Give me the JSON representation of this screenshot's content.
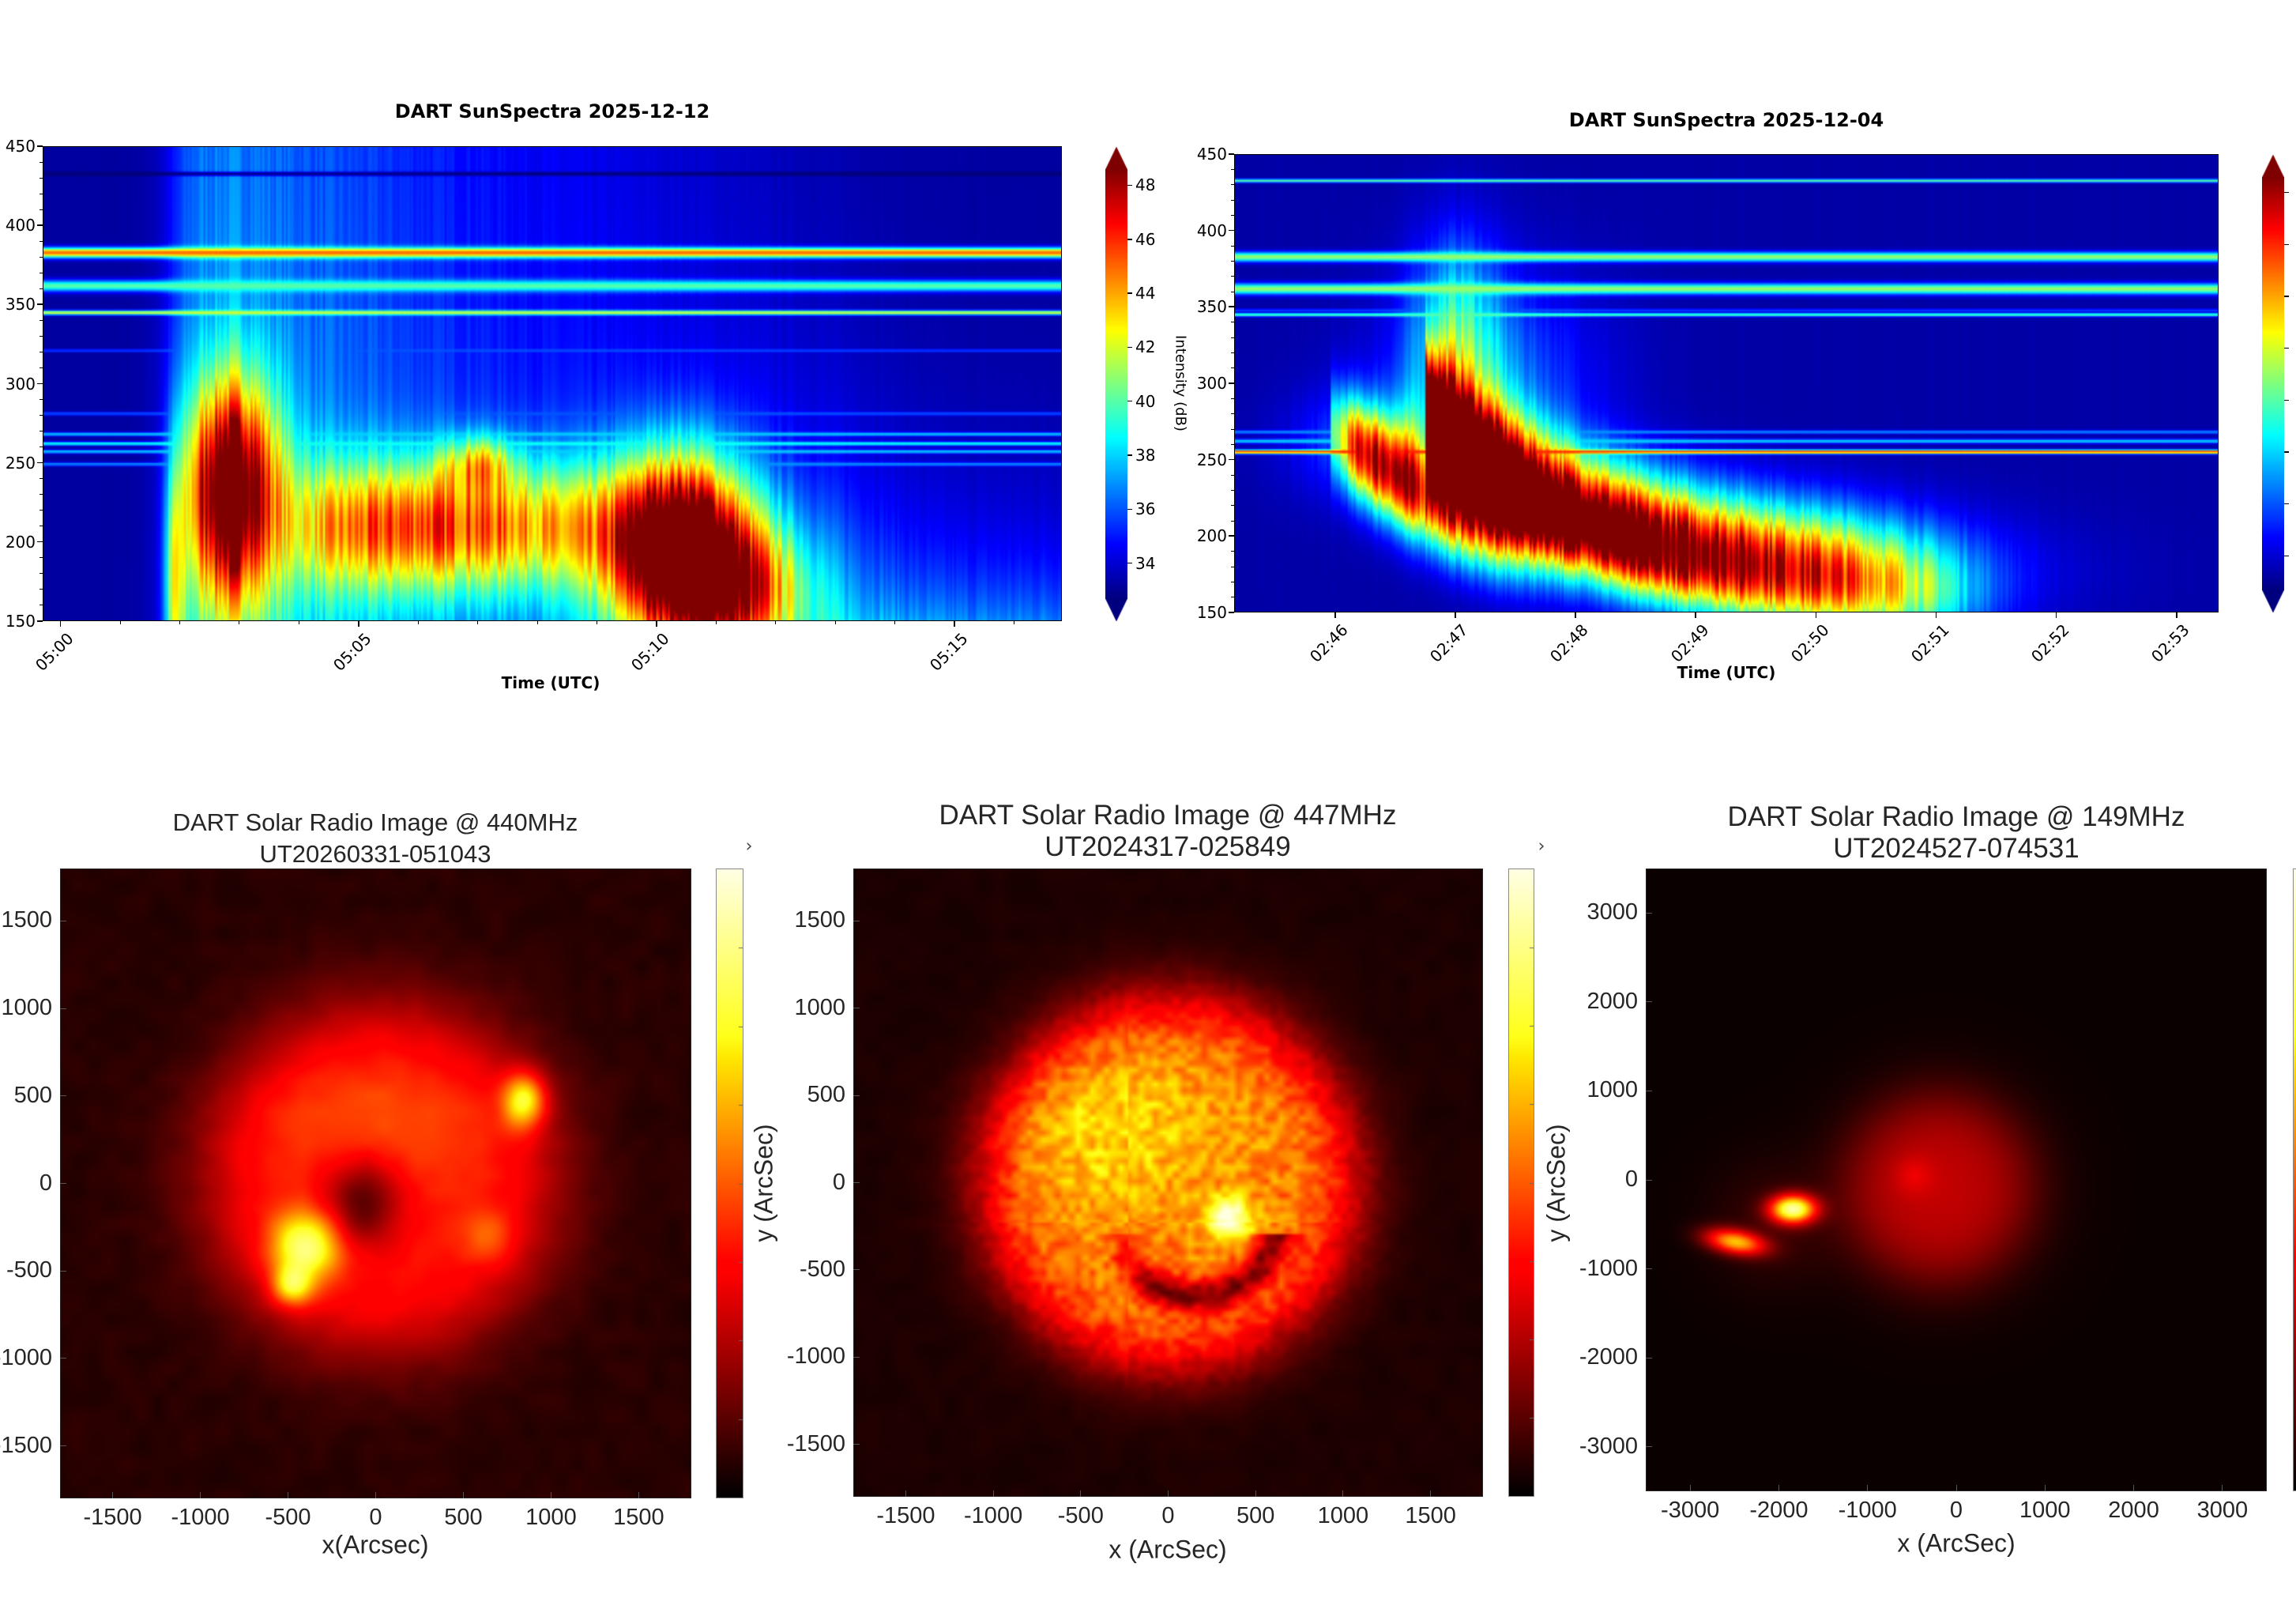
{
  "chart_data": [
    {
      "type": "heatmap",
      "id": "spec1",
      "title": "DART SunSpectra 2025-12-12",
      "xlabel": "Time (UTC)",
      "ylabel": "",
      "colormap": "jet",
      "ylim": [
        150,
        450
      ],
      "yticks": [
        150,
        200,
        250,
        300,
        350,
        400,
        450
      ],
      "xlim_minutes": [
        -0.3,
        16.8
      ],
      "x_minor_step_minutes": 1,
      "xticks": [
        {
          "minutes": 0,
          "label": "05:00"
        },
        {
          "minutes": 5,
          "label": "05:05"
        },
        {
          "minutes": 10,
          "label": "05:10"
        },
        {
          "minutes": 15,
          "label": "05:15"
        }
      ],
      "colorbar": {
        "label": "Intensity (dB)",
        "range": [
          32.7,
          48.6
        ],
        "ticks": [
          34,
          36,
          38,
          40,
          42,
          44,
          46,
          48
        ],
        "extend": "both"
      }
    },
    {
      "type": "heatmap",
      "id": "spec2",
      "title": "DART SunSpectra 2025-12-04",
      "xlabel": "Time (UTC)",
      "ylabel": "",
      "colormap": "jet",
      "ylim": [
        150,
        450
      ],
      "yticks": [
        150,
        200,
        250,
        300,
        350,
        400,
        450
      ],
      "xlim_minutes": [
        0.16,
        8.35
      ],
      "x_minor_step_minutes": 1,
      "xticks": [
        {
          "minutes": 1,
          "label": "02:46"
        },
        {
          "minutes": 2,
          "label": "02:47"
        },
        {
          "minutes": 3,
          "label": "02:48"
        },
        {
          "minutes": 4,
          "label": "02:49"
        },
        {
          "minutes": 5,
          "label": "02:50"
        },
        {
          "minutes": 6,
          "label": "02:51"
        },
        {
          "minutes": 7,
          "label": "02:52"
        },
        {
          "minutes": 8,
          "label": "02:53"
        }
      ],
      "colorbar": {
        "label": "",
        "range": [
          32.7,
          48.6
        ],
        "ticks": [],
        "extend": "both"
      }
    },
    {
      "type": "heatmap",
      "id": "img1",
      "title_lines": [
        "DART Solar Radio Image @ 440MHz",
        "UT20260331-051043"
      ],
      "xlabel": "x(Arcsec)",
      "ylabel": "",
      "colormap": "hot",
      "xlim": [
        -1800,
        1800
      ],
      "ylim": [
        -1800,
        1800
      ],
      "xticks": [
        -1500,
        -1000,
        -500,
        0,
        500,
        1000,
        1500
      ],
      "yticks": [
        -1500,
        -1000,
        -500,
        0,
        500,
        1000,
        1500
      ],
      "corner_mark": "›"
    },
    {
      "type": "heatmap",
      "id": "img2",
      "title_lines": [
        "DART Solar Radio Image @ 447MHz",
        "UT2024317-025849"
      ],
      "xlabel": "x (ArcSec)",
      "ylabel": "y (ArcSec)",
      "colormap": "hot",
      "xlim": [
        -1800,
        1800
      ],
      "ylim": [
        -1800,
        1800
      ],
      "xticks": [
        -1500,
        -1000,
        -500,
        0,
        500,
        1000,
        1500
      ],
      "yticks": [
        -1500,
        -1000,
        -500,
        0,
        500,
        1000,
        1500
      ],
      "corner_mark": "›"
    },
    {
      "type": "heatmap",
      "id": "img3",
      "title_lines": [
        "DART Solar Radio Image @ 149MHz",
        "UT2024527-074531"
      ],
      "xlabel": "x (ArcSec)",
      "ylabel": "y (ArcSec)",
      "colormap": "hot",
      "xlim": [
        -3500,
        3500
      ],
      "ylim": [
        -3500,
        3500
      ],
      "xticks": [
        -3000,
        -2000,
        -1000,
        0,
        1000,
        2000,
        3000
      ],
      "yticks": [
        -3000,
        -2000,
        -1000,
        0,
        1000,
        2000,
        3000
      ]
    }
  ]
}
